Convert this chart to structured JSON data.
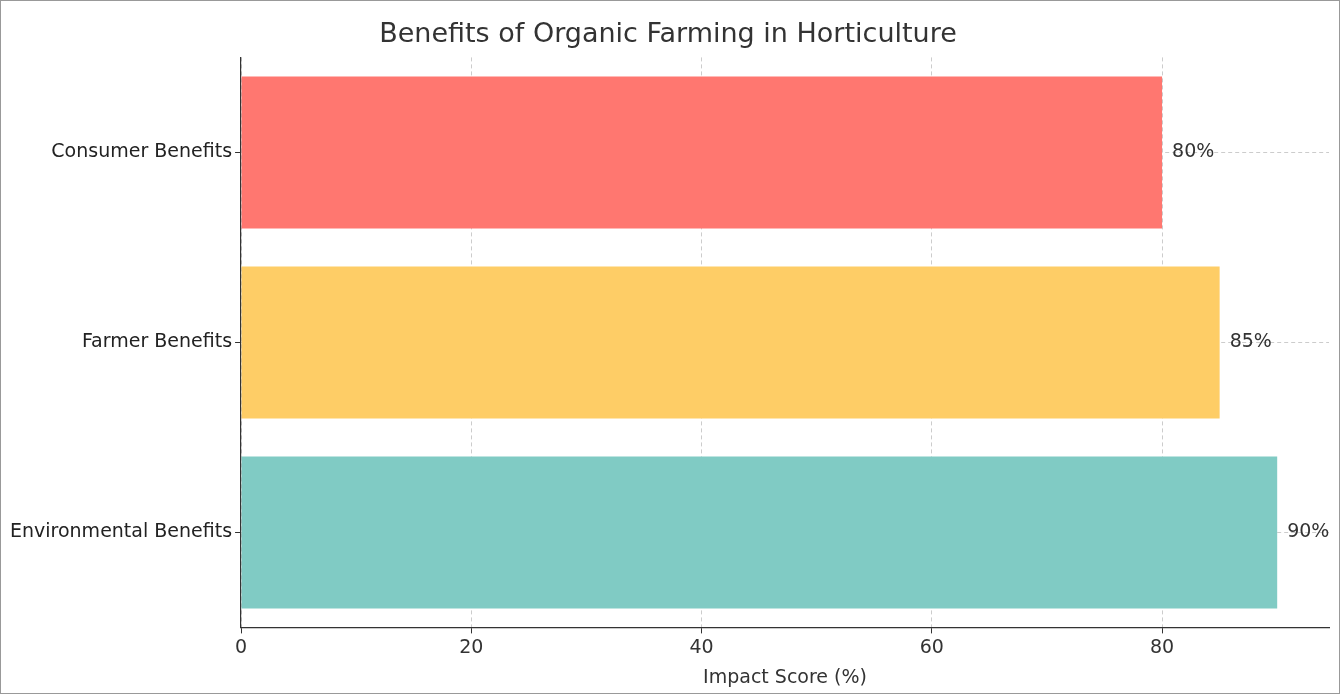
{
  "chart_data": {
    "type": "bar",
    "orientation": "horizontal",
    "title": "Benefits of Organic Farming in Horticulture",
    "xlabel": "Impact Score (%)",
    "categories": [
      "Consumer Benefits",
      "Farmer Benefits",
      "Environmental Benefits"
    ],
    "values": [
      80,
      85,
      90
    ],
    "colors": [
      "#ff7770",
      "#fecd66",
      "#80cbc4"
    ],
    "value_labels": [
      "80%",
      "85%",
      "90%"
    ],
    "xlim": [
      0,
      94.5
    ],
    "xticks": [
      0,
      20,
      40,
      60,
      80
    ],
    "grid": true
  }
}
